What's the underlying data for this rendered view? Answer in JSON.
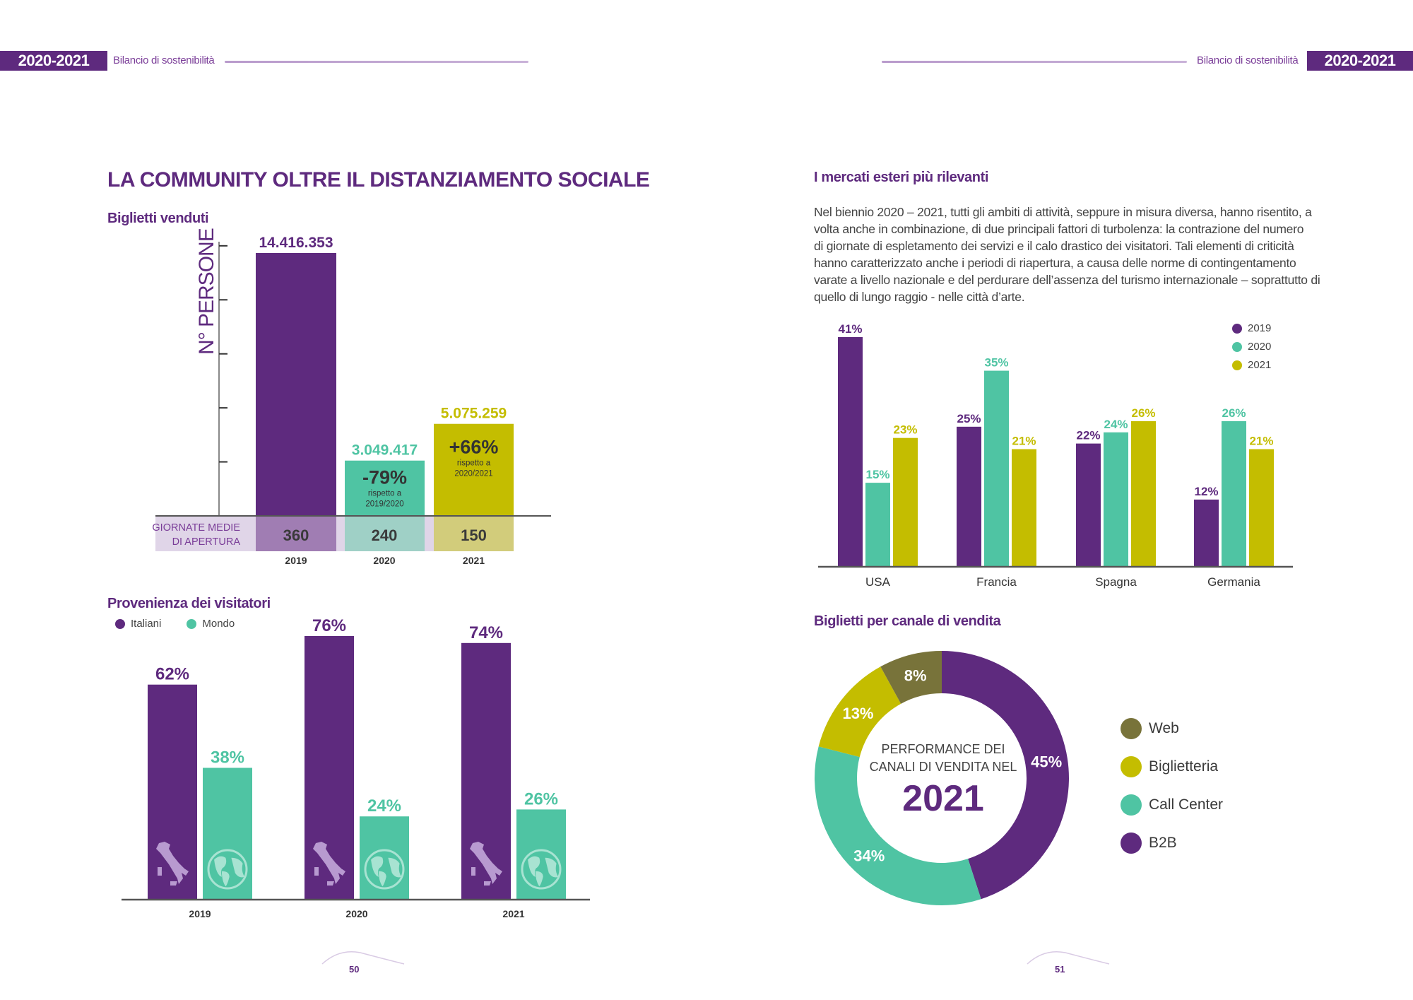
{
  "header": {
    "left": {
      "year_badge": "2020-2021",
      "report_title": "Bilancio di sostenibilità"
    },
    "right": {
      "year_badge": "2020-2021",
      "report_title": "Bilancio di sostenibilità"
    }
  },
  "left_page": {
    "title": "LA COMMUNITY OLTRE IL DISTANZIAMENTO SOCIALE",
    "tickets_section_title": "Biglietti venduti",
    "visitors_section_title": "Provenienza dei visitatori",
    "page_number": "50"
  },
  "right_page": {
    "markets_section_title": "I mercati esteri più rilevanti",
    "markets_paragraph": "Nel biennio 2020 – 2021, tutti gli ambiti di attività, seppure in misura diversa, hanno risentito, a volta anche in combinazione, di due principali fattori di turbolenza: la contrazione del numero di giornate di espletamento dei servizi e il calo drastico dei visitatori. Tali elementi di criticità hanno caratterizzato anche i periodi di riapertura, a causa delle norme di contingentamento varate a livello nazionale e del perdurare dell’assenza del turismo internazionale – soprattutto di quello di lungo raggio - nelle città d’arte.",
    "markets_paragraph_lines": [
      "Nel biennio 2020 – 2021, tutti gli ambiti di attività, seppure in misura diversa, hanno risentito, a",
      "volta anche in combinazione, di due principali fattori di turbolenza: la contrazione del numero",
      "di giornate di espletamento dei servizi e il calo drastico dei visitatori. Tali elementi di criticità",
      "hanno caratterizzato anche i periodi di riapertura, a causa delle norme di contingentamento",
      "varate a livello nazionale e del perdurare dell’assenza del turismo internazionale – soprattutto di",
      "quello di lungo raggio - nelle città d’arte."
    ],
    "channels_section_title": "Biglietti per canale di vendita",
    "page_number": "51"
  },
  "colors": {
    "purple": "#5e2a7e",
    "teal": "#4fc4a3",
    "olive_yellow": "#c4bd00",
    "dark_olive": "#78733a",
    "light_purple": "#a07db3"
  },
  "chart_data": [
    {
      "id": "tickets",
      "type": "bar",
      "title": "Biglietti venduti",
      "ylabel": "N° PERSONE",
      "xlabel": "",
      "categories": [
        "2019",
        "2020",
        "2021"
      ],
      "values": [
        14416353,
        3049417,
        5075259
      ],
      "value_labels": [
        "14.416.353",
        "3.049.417",
        "5.075.259"
      ],
      "annotations": [
        null,
        {
          "value": "-79%",
          "note_line1": "rispetto a",
          "note_line2": "2019/2020"
        },
        {
          "value": "+66%",
          "note_line1": "rispetto a",
          "note_line2": "2020/2021"
        }
      ],
      "colors": [
        "#5e2a7e",
        "#4fc4a3",
        "#c4bd00"
      ],
      "ylim": [
        0,
        15000000
      ],
      "grid": false,
      "table_row": {
        "label_line1": "GIORNATE MEDIE",
        "label_line2": "DI APERTURA",
        "values": [
          "360",
          "240",
          "150"
        ]
      }
    },
    {
      "id": "visitors_origin",
      "type": "bar",
      "title": "Provenienza dei visitatori",
      "xlabel": "",
      "ylabel": "",
      "categories": [
        "2019",
        "2020",
        "2021"
      ],
      "series": [
        {
          "name": "Italiani",
          "values": [
            62,
            76,
            74
          ],
          "labels": [
            "62%",
            "76%",
            "74%"
          ],
          "color": "#5e2a7e",
          "icon": "italy-map-icon"
        },
        {
          "name": "Mondo",
          "values": [
            38,
            24,
            26
          ],
          "labels": [
            "38%",
            "24%",
            "26%"
          ],
          "color": "#4fc4a3",
          "icon": "globe-icon"
        }
      ],
      "ylim": [
        0,
        80
      ],
      "legend": "top-left",
      "grid": false
    },
    {
      "id": "foreign_markets",
      "type": "bar",
      "title": "I mercati esteri più rilevanti",
      "xlabel": "",
      "ylabel": "",
      "categories": [
        "USA",
        "Francia",
        "Spagna",
        "Germania"
      ],
      "series": [
        {
          "name": "2019",
          "values": [
            41,
            25,
            22,
            12
          ],
          "labels": [
            "41%",
            "25%",
            "22%",
            "12%"
          ],
          "color": "#5e2a7e"
        },
        {
          "name": "2020",
          "values": [
            15,
            35,
            24,
            26
          ],
          "labels": [
            "15%",
            "35%",
            "24%",
            "26%"
          ],
          "color": "#4fc4a3"
        },
        {
          "name": "2021",
          "values": [
            23,
            21,
            26,
            21
          ],
          "labels": [
            "23%",
            "21%",
            "26%",
            "21%"
          ],
          "color": "#c4bd00"
        }
      ],
      "ylim": [
        0,
        42
      ],
      "legend": "top-right",
      "grid": false
    },
    {
      "id": "sales_channels",
      "type": "pie",
      "title": "Biglietti per canale di vendita",
      "center_text_line1": "PERFORMANCE DEI",
      "center_text_line2": "CANALI DI VENDITA NEL",
      "center_year": "2021",
      "slices": [
        {
          "name": "B2B",
          "value": 45,
          "label": "45%",
          "color": "#5e2a7e"
        },
        {
          "name": "Call Center",
          "value": 34,
          "label": "34%",
          "color": "#4fc4a3"
        },
        {
          "name": "Biglietteria",
          "value": 13,
          "label": "13%",
          "color": "#c4bd00"
        },
        {
          "name": "Web",
          "value": 8,
          "label": "8%",
          "color": "#78733a"
        }
      ],
      "legend_order": [
        "Web",
        "Biglietteria",
        "Call Center",
        "B2B"
      ],
      "legend": "right"
    }
  ]
}
